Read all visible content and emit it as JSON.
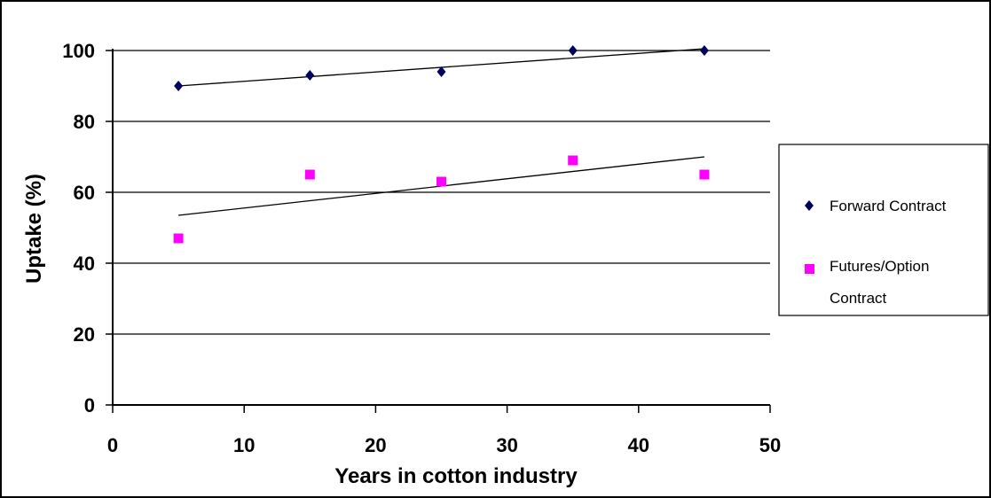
{
  "chart_data": {
    "type": "scatter",
    "title": "",
    "xlabel": "Years  in cotton industry",
    "ylabel": "Uptake (%)",
    "xlim": [
      0,
      50
    ],
    "ylim": [
      0,
      100
    ],
    "x_ticks": [
      0,
      10,
      20,
      30,
      40,
      50
    ],
    "y_ticks": [
      0,
      20,
      40,
      60,
      80,
      100
    ],
    "grid": "horizontal",
    "legend_position": "right",
    "series": [
      {
        "name": "Forward Contract",
        "marker": "diamond",
        "color": "#00005e",
        "x": [
          5,
          15,
          25,
          35,
          45
        ],
        "y": [
          90,
          93,
          94,
          100,
          100
        ],
        "trendline": [
          [
            5,
            90
          ],
          [
            45,
            100.5
          ]
        ]
      },
      {
        "name": "Futures/Option Contract",
        "legend_lines": [
          "Futures/Option",
          "Contract"
        ],
        "marker": "square",
        "color": "#ff00ff",
        "x": [
          5,
          15,
          25,
          35,
          45
        ],
        "y": [
          47,
          65,
          63,
          69,
          65
        ],
        "trendline": [
          [
            5,
            53.5
          ],
          [
            45,
            70
          ]
        ]
      }
    ]
  }
}
